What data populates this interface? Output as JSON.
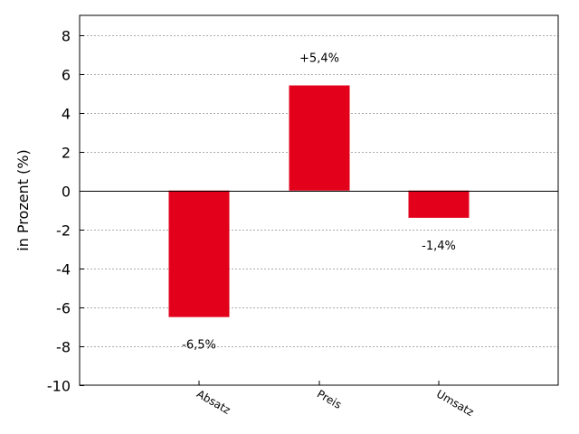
{
  "chart_data": {
    "type": "bar",
    "categories": [
      "Absatz",
      "Preis",
      "Umsatz"
    ],
    "values": [
      -6.5,
      5.4,
      -1.4
    ],
    "data_labels": [
      "-6,5%",
      "+5,4%",
      "-1,4%"
    ],
    "ylabel": "in Prozent (%)",
    "ylim": [
      -10,
      9
    ],
    "yticks": [
      8,
      6,
      4,
      2,
      0,
      -2,
      -4,
      -6,
      -8,
      -10
    ],
    "grid": true,
    "bar_color": "#e2001a"
  }
}
